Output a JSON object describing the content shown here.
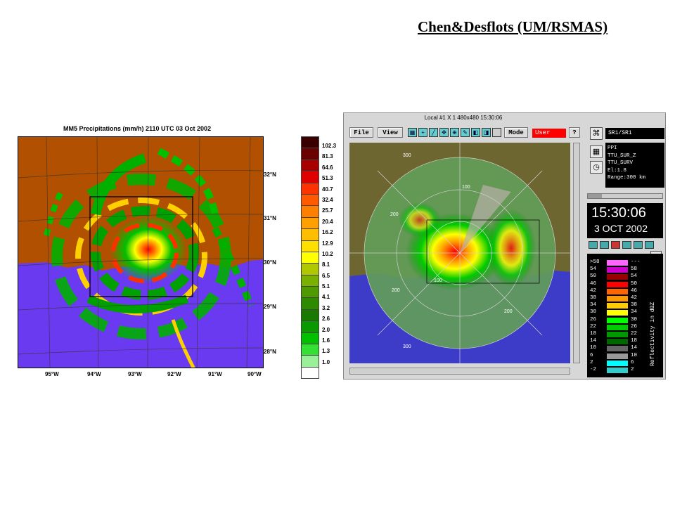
{
  "credit": "Chen&Desflots (UM/RSMAS)",
  "mm5": {
    "title": "MM5 Precipitations (mm/h) 2110 UTC 03 Oct 2002",
    "lat_labels": [
      "32°N",
      "31°N",
      "30°N",
      "29°N",
      "28°N"
    ],
    "lon_labels": [
      "95°W",
      "94°W",
      "93°W",
      "92°W",
      "91°W",
      "90°W"
    ],
    "colorbar": {
      "labels": [
        "102.3",
        "81.3",
        "64.6",
        "51.3",
        "40.7",
        "32.4",
        "25.7",
        "20.4",
        "16.2",
        "12.9",
        "10.2",
        "8.1",
        "6.5",
        "5.1",
        "4.1",
        "3.2",
        "2.6",
        "2.0",
        "1.6",
        "1.3",
        "1.0"
      ],
      "colors": [
        "#3a0000",
        "#6b0000",
        "#a80000",
        "#e00000",
        "#ff3300",
        "#ff5a00",
        "#ff8000",
        "#ff9f00",
        "#ffbf00",
        "#ffdf00",
        "#ffff00",
        "#b0c800",
        "#7ab000",
        "#4f9a00",
        "#2e8a00",
        "#1a7a00",
        "#0a9a00",
        "#00c000",
        "#33e033",
        "#99f099",
        "#ffffff"
      ]
    },
    "colors": {
      "land": "#b05000",
      "water": "#6a3af0"
    }
  },
  "radar_window": {
    "title": "Local #1  X 1  480x480  15:30:06",
    "toolbar": {
      "file": "File",
      "view": "View",
      "mode": "Mode",
      "user": "User",
      "help": "?"
    },
    "station": "SR1/SR1",
    "info_lines": [
      "PPI",
      "TTU_SUR_Z",
      "TTU_SURV",
      "El:1.8",
      "Range:300 km"
    ],
    "clock_time": "15:30:06",
    "clock_date": "3 OCT 2002",
    "range_ring_labels": [
      "300",
      "200",
      "100",
      "100",
      "200",
      "200",
      "300"
    ],
    "legend": {
      "title": "Reflectivity in dBZ",
      "left_values": [
        ">58",
        "54",
        "50",
        "46",
        "42",
        "38",
        "34",
        "30",
        "26",
        "22",
        "18",
        "14",
        "10",
        "6",
        "2",
        "-2"
      ],
      "right_values": [
        "---",
        "58",
        "54",
        "50",
        "46",
        "42",
        "38",
        "34",
        "30",
        "26",
        "22",
        "18",
        "14",
        "10",
        "6",
        "2"
      ],
      "colors": [
        "#ff66ff",
        "#cc00cc",
        "#990000",
        "#ff0000",
        "#ff6600",
        "#ff9900",
        "#ffcc00",
        "#ffff00",
        "#00ff00",
        "#00cc00",
        "#009900",
        "#006600",
        "#666666",
        "#999999",
        "#00ffff",
        "#33cccc"
      ]
    },
    "colors": {
      "land": "#6e6630",
      "water": "#3c3cc8"
    }
  }
}
